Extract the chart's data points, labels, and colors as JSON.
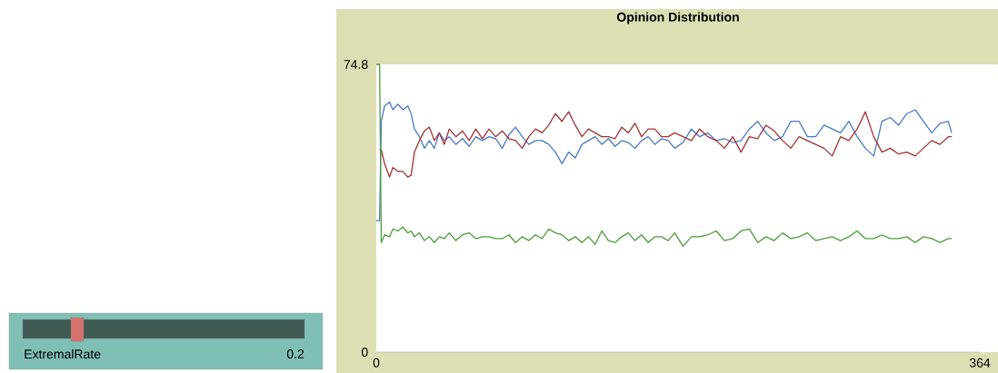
{
  "chart_data": [
    {
      "type": "other",
      "title": "ExtremalRate",
      "annotations": [
        "0.2"
      ]
    },
    {
      "type": "line",
      "title": "Opinion Distribution",
      "x": [
        0,
        2,
        3,
        5,
        8,
        10,
        13,
        16,
        19,
        21,
        23,
        26,
        29,
        32,
        35,
        38,
        41,
        44,
        48,
        52,
        56,
        60,
        64,
        68,
        72,
        76,
        80,
        84,
        88,
        92,
        96,
        100,
        104,
        108,
        112,
        116,
        120,
        124,
        128,
        132,
        136,
        140,
        144,
        148,
        152,
        156,
        160,
        164,
        168,
        172,
        176,
        180,
        185,
        190,
        195,
        200,
        205,
        210,
        215,
        220,
        225,
        230,
        235,
        240,
        245,
        250,
        255,
        260,
        265,
        270,
        275,
        280,
        285,
        290,
        295,
        300,
        305,
        310,
        315,
        320,
        325,
        330,
        335,
        340,
        345,
        347
      ],
      "series": [
        {
          "color": "#4a78c8",
          "values": [
            34.2,
            34.2,
            60,
            64,
            65,
            63,
            64.5,
            63,
            64,
            62,
            58,
            56,
            53,
            55,
            53,
            57,
            55,
            56,
            54,
            55.5,
            53.5,
            56,
            55,
            56,
            55.5,
            53,
            56.5,
            58.5,
            56,
            54,
            55,
            55,
            54,
            52,
            49,
            52,
            50.5,
            54,
            55,
            56,
            54,
            55.5,
            53.5,
            55,
            54.5,
            53,
            55,
            56,
            54,
            55.5,
            55,
            53,
            54.5,
            58,
            56,
            57,
            55,
            55.5,
            54.5,
            55,
            58,
            60,
            57,
            55,
            56,
            60,
            60,
            56,
            56,
            59,
            58,
            57,
            60,
            56,
            53,
            51,
            60,
            61,
            59,
            62,
            63,
            60,
            57,
            59.5,
            60,
            57
          ]
        },
        {
          "color": "#a03232",
          "values": [
            null,
            52.6,
            52.6,
            49,
            45.5,
            48,
            47,
            47,
            45.5,
            46,
            52,
            55,
            57.5,
            58.5,
            55,
            57,
            54,
            58,
            56,
            57.5,
            55,
            58,
            55.5,
            58,
            56,
            57.5,
            55.5,
            55,
            53,
            56,
            58,
            57,
            59,
            62,
            60,
            62.5,
            59,
            56,
            58,
            57,
            56,
            56,
            55.5,
            58.5,
            57,
            59.5,
            56,
            58,
            58,
            56,
            56,
            57,
            56,
            55,
            58,
            56,
            55,
            53,
            56,
            52,
            56,
            55.5,
            59,
            57.5,
            55,
            53,
            56,
            55,
            54,
            53,
            51,
            56,
            55,
            58,
            62.5,
            56,
            52,
            53,
            51.5,
            52,
            51,
            53,
            55,
            54,
            56,
            56
          ]
        },
        {
          "color": "#4f9a3c",
          "values": [
            74.8,
            74.8,
            28.5,
            30.5,
            30,
            32,
            31.5,
            32.5,
            31,
            31.5,
            30,
            31,
            29,
            30,
            28.5,
            30,
            29.5,
            31,
            29,
            30.5,
            31,
            29.5,
            30,
            30,
            29.5,
            29.5,
            30.5,
            28.5,
            30,
            29,
            30.5,
            29.5,
            32,
            31,
            30.5,
            29,
            30,
            28.5,
            30,
            28,
            31.5,
            29,
            28.5,
            30,
            31,
            29,
            30.5,
            28.5,
            30,
            30,
            29,
            31,
            27.5,
            30,
            30,
            30.5,
            31.5,
            29,
            29.5,
            31.5,
            32,
            28.5,
            30,
            29,
            31,
            29.5,
            30,
            31,
            29,
            29.5,
            30,
            29,
            30,
            31.5,
            29.5,
            29.5,
            30.5,
            29.5,
            29.5,
            30,
            28.5,
            30,
            29.5,
            28.5,
            29.5,
            29.5
          ]
        }
      ],
      "xlim": [
        0,
        364
      ],
      "xticks": [
        0,
        364
      ],
      "ylim": [
        0,
        74.8
      ],
      "yticks": [
        0,
        74.8
      ]
    }
  ]
}
